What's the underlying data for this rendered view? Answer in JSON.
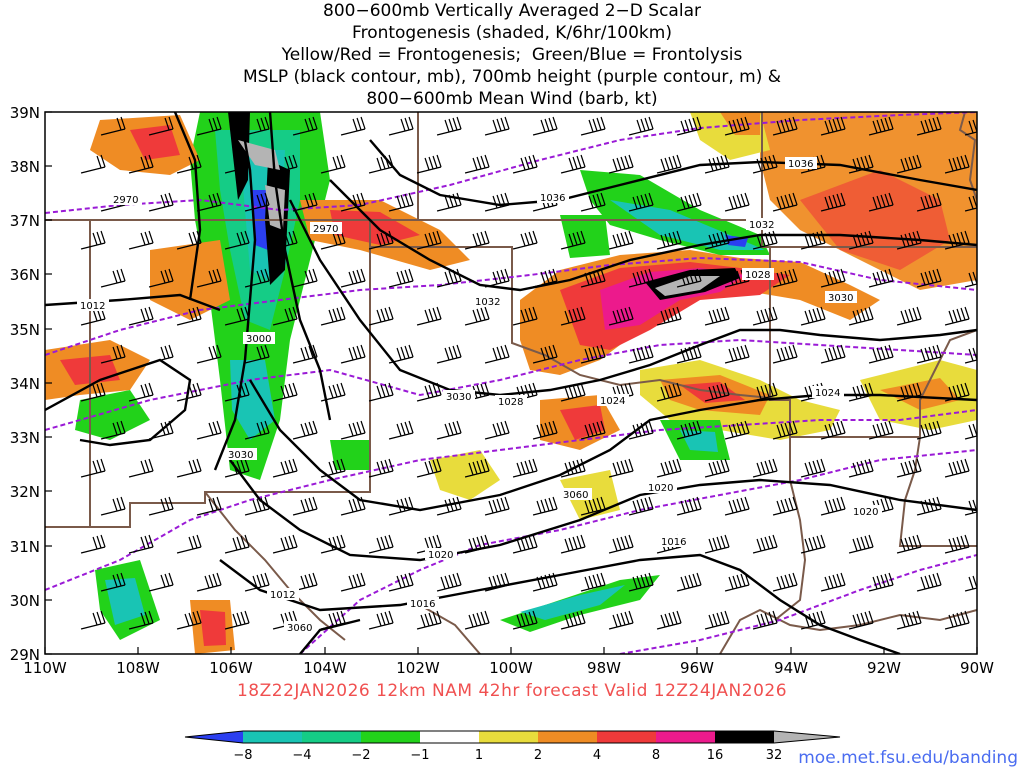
{
  "title_lines": [
    "800−600mb Vertically Averaged 2−D Scalar",
    "Frontogenesis (shaded, K/6hr/100km)",
    "Yellow/Red = Frontogenesis;  Green/Blue = Frontolysis",
    "MSLP (black contour, mb), 700mb height (purple contour, m) &",
    "800−600mb Mean Wind (barb, kt)"
  ],
  "lat_labels": [
    "39N",
    "38N",
    "37N",
    "36N",
    "35N",
    "34N",
    "33N",
    "32N",
    "31N",
    "30N",
    "29N"
  ],
  "lon_labels": [
    "110W",
    "108W",
    "106W",
    "104W",
    "102W",
    "100W",
    "98W",
    "96W",
    "94W",
    "92W",
    "90W"
  ],
  "mslp_labels": [
    "1036",
    "1036",
    "1032",
    "1032",
    "1028",
    "1028",
    "1024",
    "1024",
    "1020",
    "1020",
    "1020",
    "1016",
    "1016",
    "1012",
    "1012"
  ],
  "height_labels": [
    "2970",
    "2970",
    "3000",
    "3030",
    "3030",
    "3030",
    "3060",
    "3060"
  ],
  "valid_text": "18Z22JAN2026 12km NAM 42hr forecast Valid 12Z24JAN2026",
  "colorbar": {
    "labels": [
      "−8",
      "−4",
      "−2",
      "−1",
      "1",
      "2",
      "4",
      "8",
      "16",
      "32"
    ],
    "colors": [
      "#2b3ff0",
      "#19c4b4",
      "#15cc86",
      "#22d21a",
      "#ffffff",
      "#e8dc3c",
      "#ef8c24",
      "#ef3a3a",
      "#ec1a8c",
      "#000000",
      "#b4b4b4"
    ]
  },
  "credit": "moe.met.fsu.edu/banding",
  "colors": {
    "mslp": "#000000",
    "height": "#9a1ad6",
    "borders": "#7a5a4a",
    "valid": "#f05050"
  }
}
